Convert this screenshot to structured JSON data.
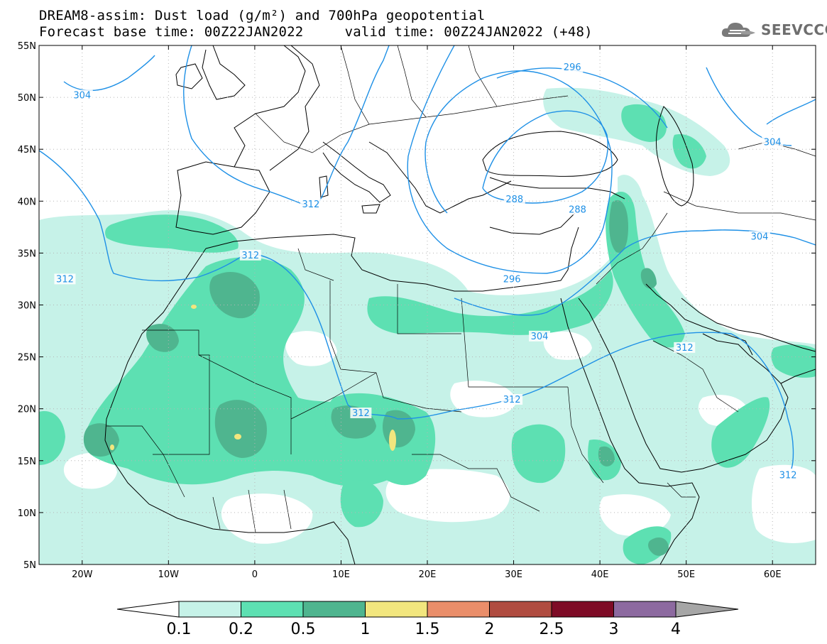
{
  "header": {
    "title_line1": "DREAM8-assim: Dust load (g/m²) and 700hPa geopotential",
    "title_line2": "Forecast base time: 00Z22JAN2022     valid time: 00Z24JAN2022 (+48)",
    "logo_text": "SEEVCCC"
  },
  "map": {
    "lon_range": [
      -25,
      65
    ],
    "lat_range": [
      5,
      55
    ],
    "lon_ticks": [
      {
        "lon": -20,
        "label": "20W"
      },
      {
        "lon": -10,
        "label": "10W"
      },
      {
        "lon": 0,
        "label": "0"
      },
      {
        "lon": 10,
        "label": "10E"
      },
      {
        "lon": 20,
        "label": "20E"
      },
      {
        "lon": 30,
        "label": "30E"
      },
      {
        "lon": 40,
        "label": "40E"
      },
      {
        "lon": 50,
        "label": "50E"
      },
      {
        "lon": 60,
        "label": "60E"
      }
    ],
    "lat_ticks": [
      {
        "lat": 55,
        "label": "55N"
      },
      {
        "lat": 50,
        "label": "50N"
      },
      {
        "lat": 45,
        "label": "45N"
      },
      {
        "lat": 40,
        "label": "40N"
      },
      {
        "lat": 35,
        "label": "35N"
      },
      {
        "lat": 30,
        "label": "30N"
      },
      {
        "lat": 25,
        "label": "25N"
      },
      {
        "lat": 20,
        "label": "20N"
      },
      {
        "lat": 15,
        "label": "15N"
      },
      {
        "lat": 10,
        "label": "10N"
      },
      {
        "lat": 5,
        "label": "5N"
      }
    ],
    "contour_labels": [
      {
        "text": "304",
        "lon": -20,
        "lat": 50.1
      },
      {
        "text": "296",
        "lon": 36.8,
        "lat": 52.8
      },
      {
        "text": "304",
        "lon": 60,
        "lat": 45.6
      },
      {
        "text": "312",
        "lon": 6.5,
        "lat": 39.6
      },
      {
        "text": "288",
        "lon": 30.1,
        "lat": 40.1
      },
      {
        "text": "288",
        "lon": 37.4,
        "lat": 39.1
      },
      {
        "text": "304",
        "lon": 58.5,
        "lat": 36.5
      },
      {
        "text": "312",
        "lon": -0.5,
        "lat": 34.7
      },
      {
        "text": "312",
        "lon": -22,
        "lat": 32.4
      },
      {
        "text": "296",
        "lon": 29.8,
        "lat": 32.4
      },
      {
        "text": "304",
        "lon": 33,
        "lat": 26.9
      },
      {
        "text": "312",
        "lon": 49.8,
        "lat": 25.8
      },
      {
        "text": "312",
        "lon": 29.8,
        "lat": 20.8
      },
      {
        "text": "312",
        "lon": 12.3,
        "lat": 19.5
      },
      {
        "text": "312",
        "lon": 61.8,
        "lat": 13.5
      }
    ]
  },
  "legend": {
    "labels": [
      "0.1",
      "0.2",
      "0.5",
      "1",
      "1.5",
      "2",
      "2.5",
      "3",
      "4"
    ],
    "colors": [
      "#c6f2e8",
      "#5de0b2",
      "#4fb58f",
      "#f2e67e",
      "#ea8e6a",
      "#b04c40",
      "#7e0b26",
      "#8d6aa0"
    ],
    "low_end_color": "#ffffff",
    "high_end_color": "#a6a6a6"
  },
  "colors": {
    "dust_light": "#c6f2e8",
    "dust_medium": "#5de0b2",
    "dust_dark": "#4fb58f",
    "dust_yellow": "#f2e67e",
    "contour": "#1e90e6"
  }
}
